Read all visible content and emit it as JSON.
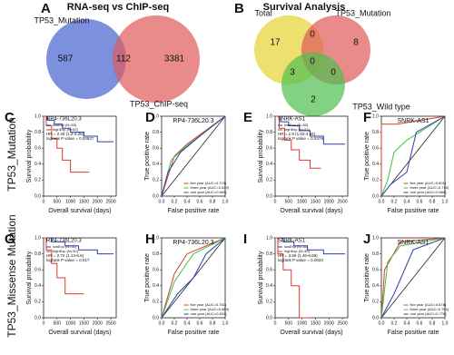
{
  "panels": {
    "A": {
      "letter": "A",
      "title": "RNA-seq vs ChIP-seq",
      "sets": [
        "TP53_Mutation",
        "TP53_ChIP-seq"
      ],
      "counts": [
        587,
        112,
        3381
      ]
    },
    "B": {
      "letter": "B",
      "title": "Survival Analysis",
      "sets": [
        "Total",
        "TP53_Mutation",
        "TP53_Wild type"
      ],
      "counts": [
        17,
        0,
        8,
        3,
        0,
        0,
        2
      ]
    }
  },
  "rows": [
    {
      "label": "TP53_Mutation",
      "panels": [
        {
          "kind": "km",
          "letter": "C",
          "title": "RP4-736L20.3",
          "ylabel": "Survival probability",
          "xlabel": "Overall survival (days)",
          "xlim": [
            0,
            2700
          ],
          "ylim": [
            0,
            1
          ],
          "xticks": [
            0,
            500,
            1000,
            1500,
            2000,
            2500
          ],
          "yticks": [
            {
              "value": 0,
              "label": "0.0"
            },
            0.2,
            0.4,
            0.6,
            0.8,
            {
              "value": 1,
              "label": "1.0"
            }
          ],
          "series": [
            {
              "name": "lowExp (N=53)",
              "color": "#2f3fb0",
              "x": [
                0,
                150,
                150,
                400,
                400,
                700,
                700,
                1000,
                1000,
                1500,
                1500,
                2000,
                2000,
                2600
              ],
              "y": [
                1,
                1,
                0.95,
                0.95,
                0.9,
                0.9,
                0.85,
                0.85,
                0.8,
                0.8,
                0.75,
                0.75,
                0.68,
                0.68
              ]
            },
            {
              "name": "highExp (N=52)",
              "color": "#d93a2e",
              "x": [
                0,
                100,
                100,
                300,
                300,
                500,
                500,
                700,
                700,
                1000,
                1000,
                1700
              ],
              "y": [
                1,
                1,
                0.88,
                0.88,
                0.72,
                0.72,
                0.6,
                0.6,
                0.45,
                0.45,
                0.3,
                0.3
              ]
            }
          ],
          "stats": [
            "HR = 2.28 (1.2-4.26)",
            "logrank P value = 0.00827"
          ]
        },
        {
          "kind": "roc",
          "letter": "D",
          "title": "RP4-736L20.3",
          "ylabel": "True positive rate",
          "xlabel": "False positive rate",
          "xlim": [
            0,
            1
          ],
          "ylim": [
            0,
            1
          ],
          "xticks": [
            {
              "value": 0,
              "label": "0.0"
            },
            0.2,
            0.4,
            0.6,
            0.8,
            {
              "value": 1,
              "label": "1.0"
            }
          ],
          "yticks": [
            {
              "value": 0,
              "label": "0.0"
            },
            0.2,
            0.4,
            0.6,
            0.8,
            {
              "value": 1,
              "label": "1.0"
            }
          ],
          "series": [
            {
              "name": "five year (AUC=0.715)",
              "color": "#d93a2e",
              "x": [
                0,
                0.2,
                0.4,
                1
              ],
              "y": [
                0,
                0.5,
                0.65,
                1
              ]
            },
            {
              "name": "three year (AUC=0.649)",
              "color": "#3fbf3f",
              "x": [
                0,
                0.15,
                0.35,
                1
              ],
              "y": [
                0,
                0.45,
                0.6,
                1
              ]
            },
            {
              "name": "one year (AUC=0.669)",
              "color": "#2f3fb0",
              "x": [
                0,
                0.1,
                0.3,
                0.6,
                1
              ],
              "y": [
                0,
                0.3,
                0.55,
                0.75,
                1
              ]
            }
          ]
        },
        {
          "kind": "km",
          "letter": "E",
          "title": "SNRK-AS1",
          "ylabel": "Survival probability",
          "xlabel": "Overall survival (days)",
          "xlim": [
            0,
            2700
          ],
          "ylim": [
            0,
            1
          ],
          "xticks": [
            0,
            500,
            1000,
            1500,
            2000,
            2500
          ],
          "yticks": [
            {
              "value": 0,
              "label": "0.0"
            },
            0.2,
            0.4,
            0.6,
            0.8,
            {
              "value": 1,
              "label": "1.0"
            }
          ],
          "series": [
            {
              "name": "lowExp (N=53)",
              "color": "#2f3fb0",
              "x": [
                0,
                200,
                200,
                500,
                500,
                900,
                900,
                1300,
                1300,
                1800,
                1800,
                2600
              ],
              "y": [
                1,
                1,
                0.93,
                0.93,
                0.88,
                0.88,
                0.82,
                0.82,
                0.75,
                0.75,
                0.65,
                0.65
              ]
            },
            {
              "name": "highExp (N=52)",
              "color": "#d93a2e",
              "x": [
                0,
                150,
                150,
                350,
                350,
                600,
                600,
                900,
                900,
                1300,
                1300,
                1700
              ],
              "y": [
                1,
                1,
                0.85,
                0.85,
                0.7,
                0.7,
                0.58,
                0.58,
                0.45,
                0.45,
                0.35,
                0.35
              ]
            }
          ],
          "stats": [
            "HR = 1.9 (1.02-3.56)",
            "logrank P value = 0.0379"
          ]
        },
        {
          "kind": "roc",
          "letter": "F",
          "title": "SNRK-AS1",
          "ylabel": "True positive rate",
          "xlabel": "False positive rate",
          "xlim": [
            0,
            1
          ],
          "ylim": [
            0,
            1
          ],
          "xticks": [
            {
              "value": 0,
              "label": "0.0"
            },
            0.2,
            0.4,
            0.6,
            0.8,
            {
              "value": 1,
              "label": "1.0"
            }
          ],
          "yticks": [
            {
              "value": 0,
              "label": "0.0"
            },
            0.2,
            0.4,
            0.6,
            0.8,
            {
              "value": 1,
              "label": "1.0"
            }
          ],
          "series": [
            {
              "name": "five year (AUC=0.801)",
              "color": "#d93a2e",
              "x": [
                0,
                0,
                0.25,
                1
              ],
              "y": [
                0,
                0.9,
                0.9,
                1
              ]
            },
            {
              "name": "three year (AUC=0.778)",
              "color": "#3fbf3f",
              "x": [
                0,
                0.1,
                0.2,
                0.4,
                1
              ],
              "y": [
                0,
                0.2,
                0.55,
                0.7,
                1
              ]
            },
            {
              "name": "one year (AUC=0.668)",
              "color": "#2f3fb0",
              "x": [
                0,
                0.15,
                0.4,
                0.55,
                1
              ],
              "y": [
                0,
                0.15,
                0.3,
                0.8,
                1
              ]
            }
          ]
        }
      ]
    },
    {
      "label": "TP53_Missense Mutation",
      "panels": [
        {
          "kind": "km",
          "letter": "G",
          "title": "RP4-736L20.3",
          "ylabel": "Survival probability",
          "xlabel": "Overall survival (days)",
          "xlim": [
            0,
            2700
          ],
          "ylim": [
            0,
            1
          ],
          "xticks": [
            0,
            500,
            1000,
            1500,
            2000,
            2500
          ],
          "yticks": [
            {
              "value": 0,
              "label": "0.0"
            },
            0.2,
            0.4,
            0.6,
            0.8,
            {
              "value": 1,
              "label": "1.0"
            }
          ],
          "series": [
            {
              "name": "lowExp (N=31)",
              "color": "#2f3fb0",
              "x": [
                0,
                300,
                300,
                800,
                800,
                1300,
                1300,
                2000,
                2000,
                2600
              ],
              "y": [
                1,
                1,
                0.95,
                0.95,
                0.9,
                0.9,
                0.85,
                0.85,
                0.8,
                0.8
              ]
            },
            {
              "name": "highExp (N=30)",
              "color": "#d93a2e",
              "x": [
                0,
                100,
                100,
                300,
                300,
                500,
                500,
                800,
                800,
                1500
              ],
              "y": [
                1,
                1,
                0.85,
                0.85,
                0.68,
                0.68,
                0.5,
                0.5,
                0.3,
                0.3
              ]
            }
          ],
          "stats": [
            "HR = 2.72 (1.13-6.6)",
            "logrank P value = 0.017"
          ]
        },
        {
          "kind": "roc",
          "letter": "H",
          "title": "RP4-736L20.3",
          "ylabel": "True positive rate",
          "xlabel": "False positive rate",
          "xlim": [
            0,
            1
          ],
          "ylim": [
            0,
            1
          ],
          "xticks": [
            {
              "value": 0,
              "label": "0.0"
            },
            0.2,
            0.4,
            0.6,
            0.8,
            {
              "value": 1,
              "label": "1.0"
            }
          ],
          "yticks": [
            {
              "value": 0,
              "label": "0.0"
            },
            0.2,
            0.4,
            0.6,
            0.8,
            {
              "value": 1,
              "label": "1.0"
            }
          ],
          "series": [
            {
              "name": "five year (AUC=0.761)",
              "color": "#d93a2e",
              "x": [
                0,
                0.2,
                0.4,
                1
              ],
              "y": [
                0,
                0.55,
                0.8,
                1
              ]
            },
            {
              "name": "three year (AUC=0.689)",
              "color": "#3fbf3f",
              "x": [
                0,
                0.2,
                0.5,
                1
              ],
              "y": [
                0,
                0.45,
                0.8,
                1
              ]
            },
            {
              "name": "one year (AUC=0.634)",
              "color": "#2f3fb0",
              "x": [
                0,
                0.25,
                0.5,
                0.7,
                1
              ],
              "y": [
                0,
                0.3,
                0.5,
                0.8,
                1
              ]
            }
          ]
        },
        {
          "kind": "km",
          "letter": "I",
          "title": "SNRK-AS1",
          "ylabel": "Survival probability",
          "xlabel": "Overall survival (days)",
          "xlim": [
            0,
            2700
          ],
          "ylim": [
            0,
            1
          ],
          "xticks": [
            0,
            500,
            1000,
            1500,
            2000,
            2500
          ],
          "yticks": [
            {
              "value": 0,
              "label": "0.0"
            },
            0.2,
            0.4,
            0.6,
            0.8,
            {
              "value": 1,
              "label": "1.0"
            }
          ],
          "series": [
            {
              "name": "lowExp (N=31)",
              "color": "#2f3fb0",
              "x": [
                0,
                300,
                300,
                700,
                700,
                1200,
                1200,
                1800,
                1800,
                2600
              ],
              "y": [
                1,
                1,
                0.95,
                0.95,
                0.9,
                0.9,
                0.85,
                0.85,
                0.8,
                0.8
              ]
            },
            {
              "name": "highExp (N=30)",
              "color": "#d93a2e",
              "x": [
                0,
                100,
                100,
                300,
                300,
                600,
                600,
                900,
                900,
                1300
              ],
              "y": [
                1,
                1,
                0.8,
                0.8,
                0.6,
                0.6,
                0.4,
                0.4,
                0.0,
                0.0
              ]
            }
          ],
          "stats": [
            "HR = 3.56 (1.46-8.69)",
            "logrank P value = 0.0023"
          ]
        },
        {
          "kind": "roc",
          "letter": "J",
          "title": "SNRK-AS1",
          "ylabel": "True positive rate",
          "xlabel": "False positive rate",
          "xlim": [
            0,
            1
          ],
          "ylim": [
            0,
            1
          ],
          "xticks": [
            {
              "value": 0,
              "label": "0.0"
            },
            0.2,
            0.4,
            0.6,
            0.8,
            {
              "value": 1,
              "label": "1.0"
            }
          ],
          "yticks": [
            {
              "value": 0,
              "label": "0.0"
            },
            0.2,
            0.4,
            0.6,
            0.8,
            {
              "value": 1,
              "label": "1.0"
            }
          ],
          "series": [
            {
              "name": "five year (AUC=0.878)",
              "color": "#d93a2e",
              "x": [
                0,
                0.05,
                0.3,
                1
              ],
              "y": [
                0,
                0.6,
                0.95,
                1
              ]
            },
            {
              "name": "three year (AUC=0.794)",
              "color": "#3fbf3f",
              "x": [
                0,
                0.1,
                0.3,
                1
              ],
              "y": [
                0,
                0.7,
                0.9,
                1
              ]
            },
            {
              "name": "one year (AUC=0.778)",
              "color": "#2f3fb0",
              "x": [
                0,
                0.2,
                0.5,
                1
              ],
              "y": [
                0,
                0.3,
                0.85,
                1
              ]
            }
          ]
        }
      ]
    }
  ]
}
